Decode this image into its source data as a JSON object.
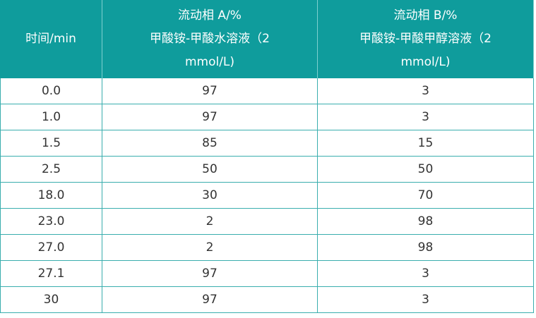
{
  "table": {
    "header": [
      [
        "时间/min"
      ],
      [
        "流动相 A/%",
        "甲酸铵-甲酸水溶液（2",
        "mmol/L)"
      ],
      [
        "流动相 B/%",
        "甲酸铵-甲酸甲醇溶液（2",
        "mmol/L)"
      ]
    ],
    "rows": [
      [
        "0.0",
        "97",
        "3"
      ],
      [
        "1.0",
        "97",
        "3"
      ],
      [
        "1.5",
        "85",
        "15"
      ],
      [
        "2.5",
        "50",
        "50"
      ],
      [
        "18.0",
        "30",
        "70"
      ],
      [
        "23.0",
        "2",
        "98"
      ],
      [
        "27.0",
        "2",
        "98"
      ],
      [
        "27.1",
        "97",
        "3"
      ],
      [
        "30",
        "97",
        "3"
      ]
    ]
  }
}
